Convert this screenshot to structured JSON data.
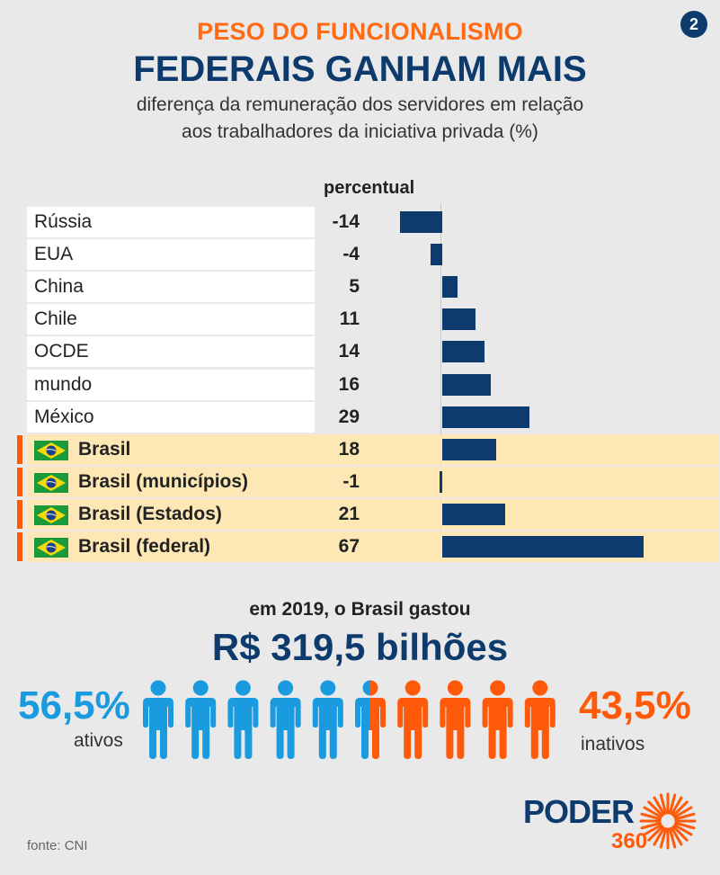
{
  "header": {
    "kicker": "PESO DO FUNCIONALISMO",
    "title": "FEDERAIS GANHAM MAIS",
    "subtitle_line1": "diferença da remuneração dos servidores em relação",
    "subtitle_line2": "aos trabalhadores da iniciativa privada (%)",
    "page_badge": "2"
  },
  "chart_data": {
    "type": "bar",
    "orientation": "horizontal",
    "column_header": "percentual",
    "categories": [
      "Rússia",
      "EUA",
      "China",
      "Chile",
      "OCDE",
      "mundo",
      "México",
      "Brasil",
      "Brasil (municípios)",
      "Brasil (Estados)",
      "Brasil (federal)"
    ],
    "values": [
      -14,
      -4,
      5,
      11,
      14,
      16,
      29,
      18,
      -1,
      21,
      67
    ],
    "highlighted": [
      false,
      false,
      false,
      false,
      false,
      false,
      false,
      true,
      true,
      true,
      true
    ],
    "bar_color": "#0d3b6e",
    "highlight_color": "#fde7b5",
    "marker_color": "#ff5a0a"
  },
  "spending": {
    "caption": "em 2019, o Brasil gastou",
    "value": "R$ 319,5 bilhões",
    "active_pct": "56,5%",
    "active_label": "ativos",
    "active_share": 0.565,
    "active_color": "#1a9be0",
    "inactive_pct": "43,5%",
    "inactive_label": "inativos",
    "inactive_color": "#ff5a0a"
  },
  "footer": {
    "source": "fonte: CNI",
    "logo_word": "PODER",
    "logo_number": "360"
  }
}
